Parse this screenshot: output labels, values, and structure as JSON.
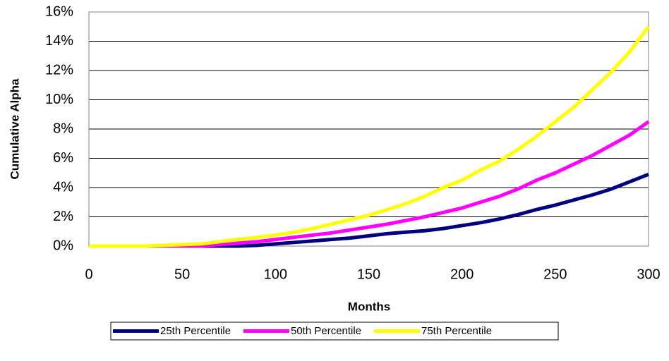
{
  "chart_data": {
    "type": "line",
    "x_label": "Months",
    "y_label": "Cumulative Alpha",
    "x": [
      0,
      10,
      20,
      30,
      40,
      50,
      60,
      70,
      80,
      90,
      100,
      110,
      120,
      130,
      140,
      150,
      160,
      170,
      180,
      190,
      200,
      210,
      220,
      230,
      240,
      250,
      260,
      270,
      280,
      290,
      300
    ],
    "series": [
      {
        "name": "25th Percentile",
        "color": "#000080",
        "values": [
          0,
          0,
          0,
          0,
          0,
          0,
          0,
          0,
          0,
          0.05,
          0.15,
          0.25,
          0.35,
          0.45,
          0.55,
          0.7,
          0.85,
          0.95,
          1.05,
          1.2,
          1.4,
          1.6,
          1.85,
          2.15,
          2.5,
          2.8,
          3.15,
          3.5,
          3.9,
          4.4,
          4.9
        ]
      },
      {
        "name": "50th Percentile",
        "color": "#ff00ff",
        "values": [
          0,
          0,
          0,
          0,
          0,
          0,
          0,
          0.1,
          0.2,
          0.3,
          0.45,
          0.6,
          0.75,
          0.9,
          1.1,
          1.3,
          1.5,
          1.75,
          2.0,
          2.3,
          2.6,
          3.0,
          3.4,
          3.9,
          4.5,
          5.0,
          5.6,
          6.2,
          6.9,
          7.6,
          8.5
        ]
      },
      {
        "name": "75th Percentile",
        "color": "#ffff00",
        "values": [
          0,
          0,
          0,
          0,
          0.05,
          0.1,
          0.15,
          0.3,
          0.45,
          0.6,
          0.75,
          0.95,
          1.2,
          1.5,
          1.8,
          2.1,
          2.5,
          2.9,
          3.4,
          4.0,
          4.5,
          5.2,
          5.8,
          6.6,
          7.5,
          8.5,
          9.5,
          10.7,
          11.9,
          13.3,
          15.0
        ]
      }
    ],
    "xlim": [
      0,
      300
    ],
    "xticks": [
      0,
      50,
      100,
      150,
      200,
      250,
      300
    ],
    "ylim": [
      0,
      16
    ],
    "yticks": [
      {
        "value": 0,
        "label": "0%"
      },
      {
        "value": 2,
        "label": "2%"
      },
      {
        "value": 4,
        "label": "4%"
      },
      {
        "value": 6,
        "label": "6%"
      },
      {
        "value": 8,
        "label": "8%"
      },
      {
        "value": 10,
        "label": "10%"
      },
      {
        "value": 12,
        "label": "12%"
      },
      {
        "value": 14,
        "label": "14%"
      },
      {
        "value": 16,
        "label": "16%"
      }
    ],
    "grid": true,
    "legend": "bottom"
  }
}
